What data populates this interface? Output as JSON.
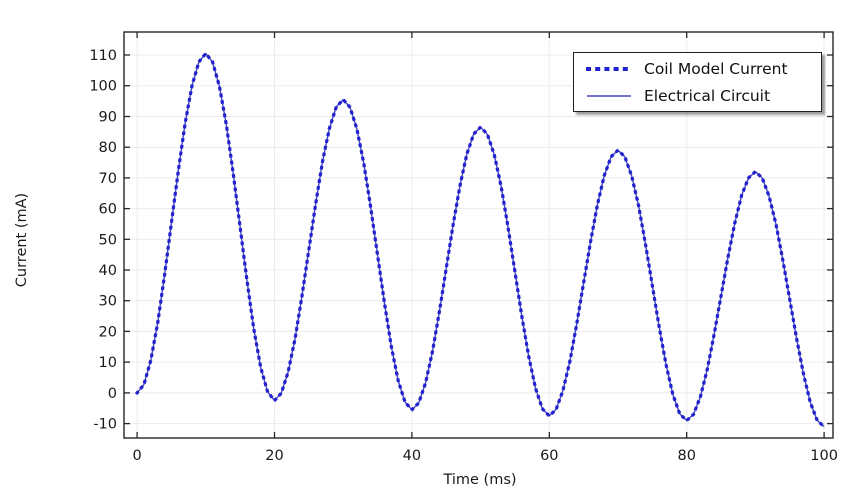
{
  "figure": {
    "background": "#ffffff",
    "grid_color": "#ececec",
    "frame_color": "#262626",
    "text_color": "#1a1a1a"
  },
  "chart_data": {
    "type": "line",
    "title": "",
    "xlabel": "Time (ms)",
    "ylabel": "Current (mA)",
    "xlim": [
      -1.9,
      101.3
    ],
    "ylim": [
      -14.7,
      117.5
    ],
    "x_ticks": [
      0,
      20,
      40,
      60,
      80,
      100
    ],
    "y_ticks": [
      -10,
      0,
      10,
      20,
      30,
      40,
      50,
      60,
      70,
      80,
      90,
      100,
      110
    ],
    "grid": true,
    "legend_position": "top-right",
    "series": [
      {
        "name": "Coil Model Current",
        "line_style": "dotted",
        "color": "#2121ce"
      },
      {
        "name": "Electrical Circuit",
        "line_style": "solid",
        "color": "#4444bf"
      }
    ],
    "x": [
      0,
      1,
      2,
      3,
      4,
      5,
      6,
      7,
      8,
      9,
      10,
      11,
      12,
      13,
      14,
      15,
      16,
      17,
      18,
      19,
      20,
      21,
      22,
      23,
      24,
      25,
      26,
      27,
      28,
      29,
      30,
      31,
      32,
      33,
      34,
      35,
      36,
      37,
      38,
      39,
      40,
      41,
      42,
      43,
      44,
      45,
      46,
      47,
      48,
      49,
      50,
      51,
      52,
      53,
      54,
      55,
      56,
      57,
      58,
      59,
      60,
      61,
      62,
      63,
      64,
      65,
      66,
      67,
      68,
      69,
      70,
      71,
      72,
      73,
      74,
      75,
      76,
      77,
      78,
      79,
      80,
      81,
      82,
      83,
      84,
      85,
      86,
      87,
      88,
      89,
      90,
      91,
      92,
      93,
      94,
      95,
      96,
      97,
      98,
      99,
      100
    ],
    "values": [
      0,
      2.7,
      10.6,
      22.8,
      38.2,
      55.3,
      72.3,
      87.7,
      100.0,
      107.8,
      110.5,
      107.7,
      99.7,
      87.2,
      71.5,
      54.0,
      36.5,
      20.8,
      8.3,
      0.3,
      -2.5,
      -0.1,
      6.9,
      17.7,
      31.4,
      46.5,
      61.6,
      75.3,
      86.1,
      93.1,
      95.5,
      93.0,
      85.9,
      74.7,
      60.6,
      45.0,
      29.4,
      15.3,
      4.1,
      -3.0,
      -5.5,
      -3.3,
      3.3,
      13.5,
      26.3,
      40.5,
      54.7,
      67.5,
      77.7,
      84.3,
      86.5,
      84.2,
      77.5,
      67.1,
      54.0,
      39.5,
      25.0,
      11.9,
      1.5,
      -5.2,
      -7.5,
      -5.4,
      0.8,
      10.3,
      22.4,
      35.8,
      49.1,
      61.2,
      70.7,
      76.9,
      79.0,
      76.9,
      70.6,
      60.9,
      48.6,
      35.0,
      21.4,
      9.1,
      -0.6,
      -6.9,
      -9.0,
      -7.0,
      -1.3,
      7.7,
      19.0,
      31.5,
      44.0,
      55.3,
      64.3,
      70.0,
      72.0,
      70.0,
      64.0,
      54.9,
      43.3,
      30.5,
      17.7,
      6.1,
      -3.1,
      -9.0,
      -11.0
    ]
  }
}
